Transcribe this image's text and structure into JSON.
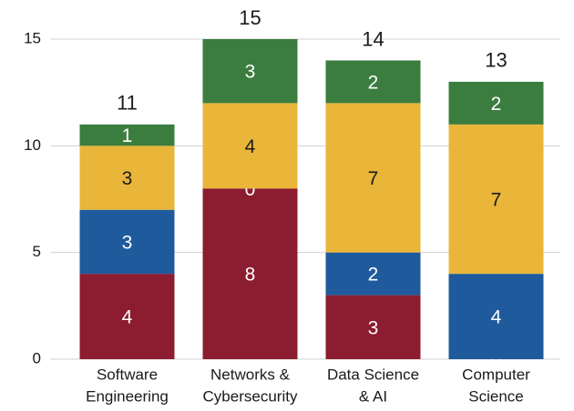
{
  "chart_data": {
    "type": "stacked_bar",
    "categories": [
      [
        "Software",
        "Engineering"
      ],
      [
        "Networks &",
        "Cybersecurity"
      ],
      [
        "Data Science",
        "& AI"
      ],
      [
        "Computer",
        "Science"
      ]
    ],
    "series": [
      {
        "color": "#8c1c2f",
        "label_color": "#ffffff",
        "values": [
          4,
          8,
          3,
          0
        ]
      },
      {
        "color": "#1f5b9c",
        "label_color": "#ffffff",
        "values": [
          3,
          0,
          2,
          4
        ]
      },
      {
        "color": "#e9b63a",
        "label_color": "#1a1a1a",
        "values": [
          3,
          4,
          7,
          7
        ]
      },
      {
        "color": "#3b7d3f",
        "label_color": "#ffffff",
        "values": [
          1,
          3,
          2,
          2
        ]
      }
    ],
    "totals": [
      11,
      15,
      14,
      13
    ],
    "ylim": [
      0,
      15
    ],
    "yticks": [
      0,
      5,
      10,
      15
    ],
    "grid": true
  }
}
